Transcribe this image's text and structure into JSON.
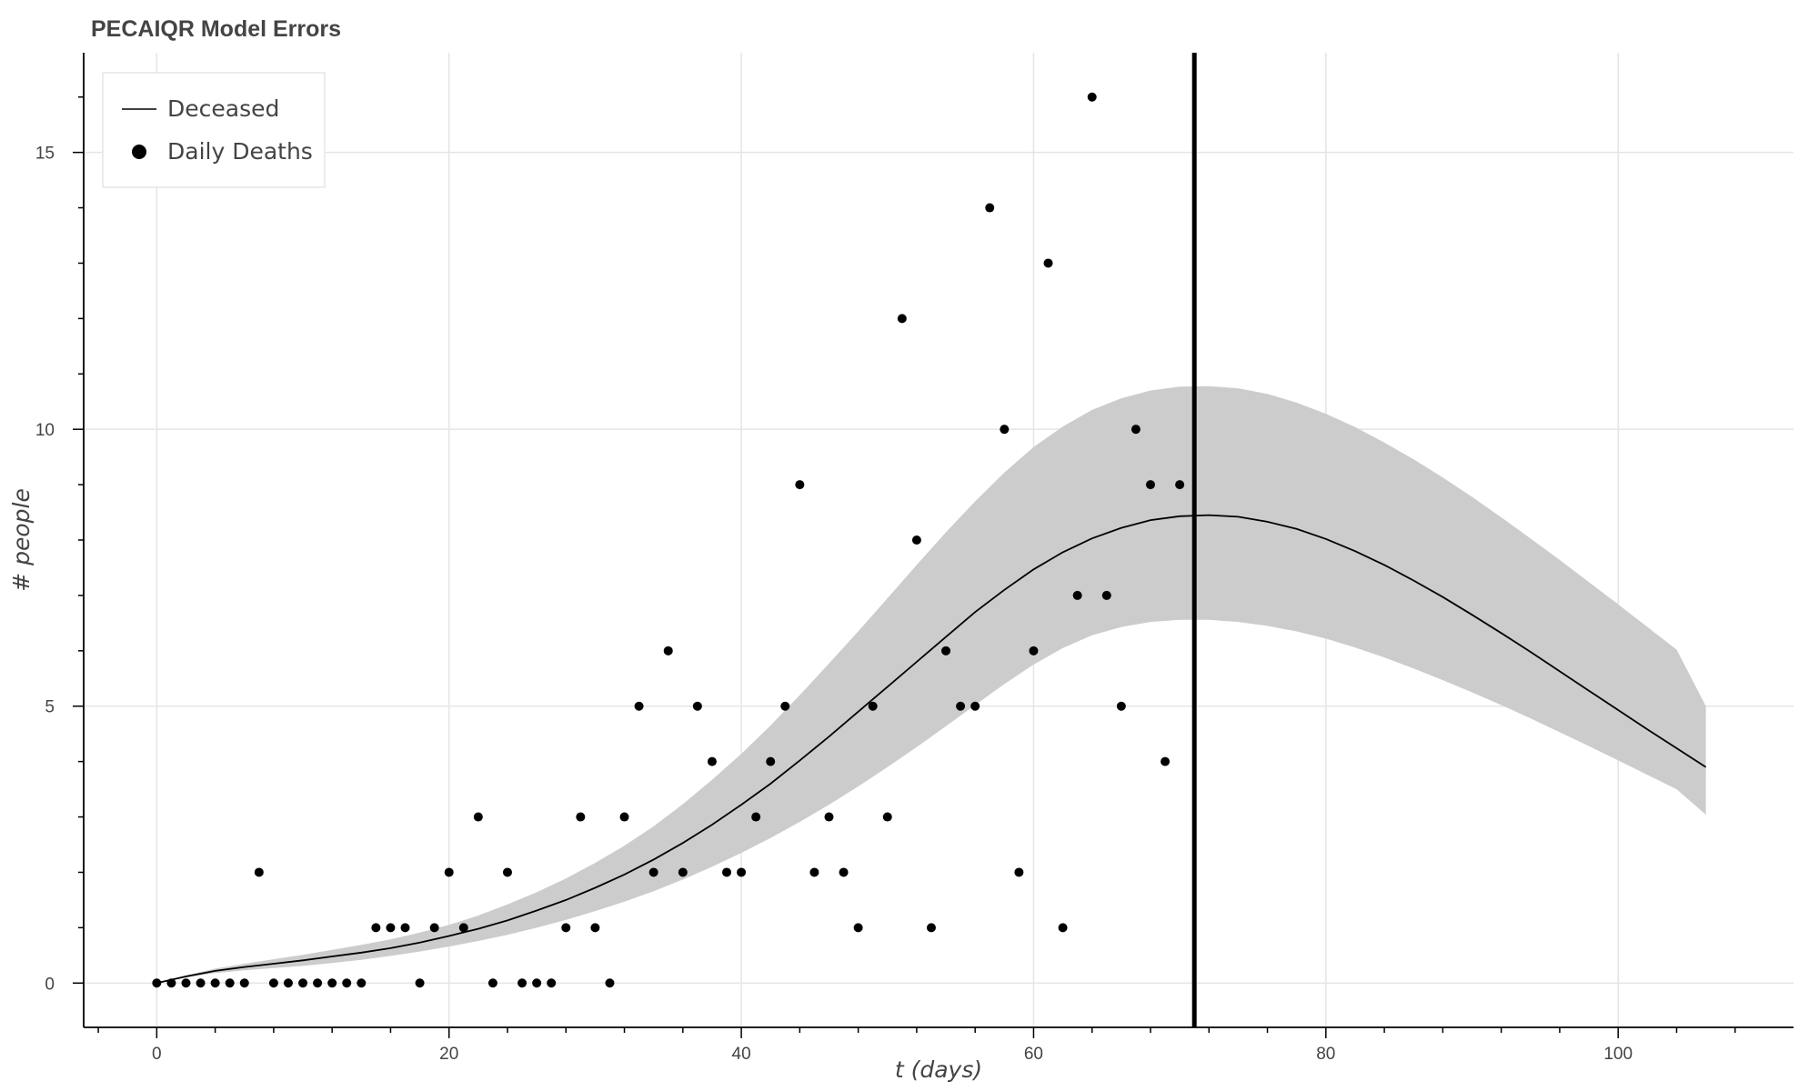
{
  "chart_data": {
    "type": "line",
    "title": "PECAIQR Model Errors",
    "xlabel": "t (days)",
    "ylabel": "# people",
    "xlim": [
      -5,
      112
    ],
    "ylim": [
      -0.8,
      16.8
    ],
    "x_ticks": [
      0,
      20,
      40,
      60,
      80,
      100
    ],
    "y_ticks": [
      0,
      5,
      10,
      15
    ],
    "grid": true,
    "legend_position": "top-left",
    "vertical_line": {
      "x": 71,
      "color": "#000000"
    },
    "series": [
      {
        "name": "Deceased",
        "kind": "line",
        "color": "#000000",
        "x": [
          0,
          2,
          4,
          6,
          8,
          10,
          12,
          14,
          16,
          18,
          20,
          22,
          24,
          26,
          28,
          30,
          32,
          34,
          36,
          38,
          40,
          42,
          44,
          46,
          48,
          50,
          52,
          54,
          56,
          58,
          60,
          62,
          64,
          66,
          68,
          70,
          72,
          74,
          76,
          78,
          80,
          82,
          84,
          86,
          88,
          90,
          92,
          94,
          96,
          98,
          100,
          102,
          104,
          106
        ],
        "y": [
          0.0,
          0.12,
          0.22,
          0.29,
          0.35,
          0.41,
          0.48,
          0.55,
          0.63,
          0.73,
          0.85,
          0.98,
          1.13,
          1.31,
          1.5,
          1.72,
          1.96,
          2.23,
          2.53,
          2.86,
          3.22,
          3.6,
          4.02,
          4.45,
          4.9,
          5.35,
          5.8,
          6.25,
          6.7,
          7.1,
          7.47,
          7.78,
          8.03,
          8.22,
          8.36,
          8.43,
          8.45,
          8.42,
          8.33,
          8.2,
          8.02,
          7.8,
          7.55,
          7.27,
          6.97,
          6.65,
          6.32,
          5.98,
          5.63,
          5.28,
          4.93,
          4.58,
          4.24,
          3.9
        ]
      },
      {
        "name": "",
        "kind": "band",
        "color": "#cccccc",
        "x": [
          0,
          2,
          4,
          6,
          8,
          10,
          12,
          14,
          16,
          18,
          20,
          22,
          24,
          26,
          28,
          30,
          32,
          34,
          36,
          38,
          40,
          42,
          44,
          46,
          48,
          50,
          52,
          54,
          56,
          58,
          60,
          62,
          64,
          66,
          68,
          70,
          72,
          74,
          76,
          78,
          80,
          82,
          84,
          86,
          88,
          90,
          92,
          94,
          96,
          98,
          100,
          102,
          104,
          106
        ],
        "lower": [
          0.0,
          0.1,
          0.18,
          0.23,
          0.27,
          0.31,
          0.36,
          0.42,
          0.49,
          0.57,
          0.66,
          0.76,
          0.87,
          1.0,
          1.14,
          1.3,
          1.47,
          1.66,
          1.87,
          2.1,
          2.35,
          2.62,
          2.91,
          3.22,
          3.55,
          3.9,
          4.26,
          4.64,
          5.02,
          5.4,
          5.75,
          6.05,
          6.28,
          6.43,
          6.52,
          6.56,
          6.56,
          6.52,
          6.45,
          6.35,
          6.22,
          6.06,
          5.88,
          5.68,
          5.47,
          5.25,
          5.02,
          4.78,
          4.53,
          4.28,
          4.02,
          3.76,
          3.5,
          3.04
        ],
        "upper": [
          0.0,
          0.14,
          0.26,
          0.35,
          0.43,
          0.51,
          0.6,
          0.69,
          0.79,
          0.91,
          1.05,
          1.22,
          1.42,
          1.64,
          1.89,
          2.17,
          2.48,
          2.83,
          3.23,
          3.67,
          4.14,
          4.65,
          5.2,
          5.77,
          6.35,
          6.95,
          7.55,
          8.14,
          8.7,
          9.22,
          9.68,
          10.05,
          10.35,
          10.56,
          10.7,
          10.77,
          10.78,
          10.74,
          10.64,
          10.48,
          10.28,
          10.04,
          9.76,
          9.46,
          9.13,
          8.78,
          8.41,
          8.03,
          7.64,
          7.24,
          6.84,
          6.43,
          6.02,
          5.0
        ]
      },
      {
        "name": "Daily Deaths",
        "kind": "scatter",
        "color": "#000000",
        "x": [
          0,
          1,
          2,
          3,
          4,
          5,
          6,
          7,
          8,
          9,
          10,
          11,
          12,
          13,
          14,
          15,
          16,
          17,
          18,
          19,
          20,
          21,
          22,
          23,
          24,
          25,
          26,
          27,
          28,
          29,
          30,
          31,
          32,
          33,
          34,
          35,
          36,
          37,
          38,
          39,
          40,
          41,
          42,
          43,
          44,
          45,
          46,
          47,
          48,
          49,
          50,
          51,
          52,
          53,
          54,
          55,
          56,
          57,
          58,
          59,
          60,
          61,
          62,
          63,
          64,
          65,
          66,
          67,
          68,
          69,
          70
        ],
        "y": [
          0,
          0,
          0,
          0,
          0,
          0,
          0,
          2,
          0,
          0,
          0,
          0,
          0,
          0,
          0,
          1,
          1,
          1,
          0,
          1,
          2,
          1,
          3,
          0,
          2,
          0,
          0,
          0,
          1,
          3,
          1,
          0,
          3,
          5,
          2,
          6,
          2,
          5,
          4,
          2,
          2,
          3,
          4,
          5,
          9,
          2,
          3,
          2,
          1,
          5,
          3,
          12,
          8,
          1,
          6,
          5,
          5,
          14,
          10,
          2,
          6,
          13,
          1,
          7,
          16,
          7,
          5,
          10,
          9,
          4,
          9
        ]
      }
    ]
  }
}
